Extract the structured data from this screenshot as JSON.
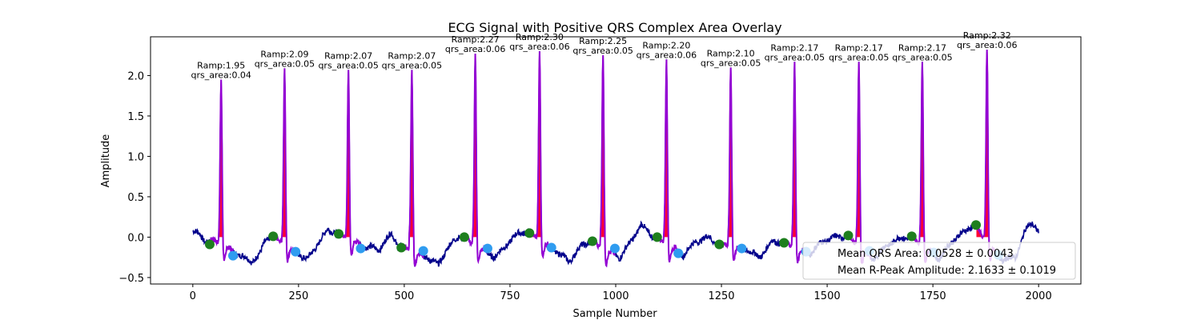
{
  "chart_data": {
    "type": "line",
    "title": "ECG Signal with Positive QRS Complex Area Overlay",
    "xlabel": "Sample Number",
    "ylabel": "Amplitude",
    "xlim": [
      -100,
      2100
    ],
    "ylim": [
      -0.58,
      2.48
    ],
    "xticks": [
      0,
      250,
      500,
      750,
      1000,
      1250,
      1500,
      1750,
      2000
    ],
    "yticks": [
      -0.5,
      0.0,
      0.5,
      1.0,
      1.5,
      2.0
    ],
    "xtick_labels": [
      "0",
      "250",
      "500",
      "750",
      "1000",
      "1250",
      "1500",
      "1750",
      "2000"
    ],
    "ytick_labels": [
      "−0.5",
      "0.0",
      "0.5",
      "1.0",
      "1.5",
      "2.0"
    ],
    "grid": false,
    "legend_position": "lower-right",
    "colors": {
      "signal": "#00008b",
      "qrs_line": "#9400d3",
      "qrs_fill": "#ff0033",
      "q_point": "#1e7f1e",
      "s_point": "#2f9cf0"
    },
    "r_peaks": [
      {
        "x": 67,
        "amp": 1.95,
        "ramp": "Ramp:1.95",
        "qrs": "qrs_area:0.04"
      },
      {
        "x": 217,
        "amp": 2.09,
        "ramp": "Ramp:2.09",
        "qrs": "qrs_area:0.05"
      },
      {
        "x": 368,
        "amp": 2.07,
        "ramp": "Ramp:2.07",
        "qrs": "qrs_area:0.05"
      },
      {
        "x": 518,
        "amp": 2.07,
        "ramp": "Ramp:2.07",
        "qrs": "qrs_area:0.05"
      },
      {
        "x": 668,
        "amp": 2.27,
        "ramp": "Ramp:2.27",
        "qrs": "qrs_area:0.06"
      },
      {
        "x": 820,
        "amp": 2.3,
        "ramp": "Ramp:2.30",
        "qrs": "qrs_area:0.06"
      },
      {
        "x": 970,
        "amp": 2.25,
        "ramp": "Ramp:2.25",
        "qrs": "qrs_area:0.05"
      },
      {
        "x": 1120,
        "amp": 2.2,
        "ramp": "Ramp:2.20",
        "qrs": "qrs_area:0.06"
      },
      {
        "x": 1272,
        "amp": 2.1,
        "ramp": "Ramp:2.10",
        "qrs": "qrs_area:0.05"
      },
      {
        "x": 1423,
        "amp": 2.17,
        "ramp": "Ramp:2.17",
        "qrs": "qrs_area:0.05"
      },
      {
        "x": 1575,
        "amp": 2.17,
        "ramp": "Ramp:2.17",
        "qrs": "qrs_area:0.05"
      },
      {
        "x": 1725,
        "amp": 2.17,
        "ramp": "Ramp:2.17",
        "qrs": "qrs_area:0.05"
      },
      {
        "x": 1878,
        "amp": 2.32,
        "ramp": "Ramp:2.32",
        "qrs": "qrs_area:0.06"
      }
    ],
    "q_points": [
      {
        "x": 40,
        "y": -0.09
      },
      {
        "x": 190,
        "y": 0.01
      },
      {
        "x": 345,
        "y": 0.04
      },
      {
        "x": 493,
        "y": -0.13
      },
      {
        "x": 642,
        "y": 0.0
      },
      {
        "x": 796,
        "y": 0.05
      },
      {
        "x": 945,
        "y": -0.05
      },
      {
        "x": 1098,
        "y": 0.0
      },
      {
        "x": 1245,
        "y": -0.09
      },
      {
        "x": 1398,
        "y": -0.07
      },
      {
        "x": 1550,
        "y": 0.02
      },
      {
        "x": 1700,
        "y": 0.01
      },
      {
        "x": 1852,
        "y": 0.15
      }
    ],
    "s_points": [
      {
        "x": 95,
        "y": -0.23
      },
      {
        "x": 243,
        "y": -0.18
      },
      {
        "x": 397,
        "y": -0.14
      },
      {
        "x": 545,
        "y": -0.17
      },
      {
        "x": 697,
        "y": -0.14
      },
      {
        "x": 848,
        "y": -0.13
      },
      {
        "x": 998,
        "y": -0.14
      },
      {
        "x": 1148,
        "y": -0.2
      },
      {
        "x": 1298,
        "y": -0.14
      },
      {
        "x": 1450,
        "y": -0.18
      },
      {
        "x": 1600,
        "y": -0.17
      },
      {
        "x": 1752,
        "y": -0.19
      },
      {
        "x": 1905,
        "y": -0.22
      }
    ],
    "baseline_segments": [
      [
        0,
        0.07
      ],
      [
        15,
        0.04
      ],
      [
        30,
        -0.05
      ],
      [
        55,
        -0.05
      ],
      [
        120,
        -0.25
      ],
      [
        140,
        -0.3
      ],
      [
        160,
        -0.2
      ],
      [
        170,
        -0.05
      ],
      [
        185,
        0.02
      ],
      [
        270,
        -0.28
      ],
      [
        300,
        -0.05
      ],
      [
        320,
        0.1
      ],
      [
        340,
        0.05
      ],
      [
        410,
        -0.12
      ],
      [
        440,
        -0.15
      ],
      [
        470,
        0.05
      ],
      [
        485,
        -0.1
      ],
      [
        555,
        -0.25
      ],
      [
        580,
        -0.35
      ],
      [
        600,
        -0.15
      ],
      [
        630,
        0.02
      ],
      [
        715,
        -0.25
      ],
      [
        740,
        -0.1
      ],
      [
        770,
        0.05
      ],
      [
        790,
        0.07
      ],
      [
        860,
        -0.18
      ],
      [
        890,
        -0.3
      ],
      [
        920,
        -0.1
      ],
      [
        940,
        -0.06
      ],
      [
        1010,
        -0.25
      ],
      [
        1030,
        -0.1
      ],
      [
        1060,
        0.15
      ],
      [
        1090,
        0.0
      ],
      [
        1160,
        -0.22
      ],
      [
        1190,
        -0.05
      ],
      [
        1220,
        0.0
      ],
      [
        1240,
        -0.08
      ],
      [
        1310,
        -0.15
      ],
      [
        1340,
        -0.25
      ],
      [
        1370,
        -0.05
      ],
      [
        1390,
        -0.06
      ],
      [
        1460,
        -0.2
      ],
      [
        1490,
        -0.05
      ],
      [
        1520,
        0.0
      ],
      [
        1545,
        0.02
      ],
      [
        1610,
        -0.28
      ],
      [
        1640,
        -0.1
      ],
      [
        1670,
        -0.02
      ],
      [
        1695,
        0.01
      ],
      [
        1765,
        -0.27
      ],
      [
        1795,
        -0.05
      ],
      [
        1820,
        0.05
      ],
      [
        1845,
        0.15
      ],
      [
        1915,
        -0.28
      ],
      [
        1945,
        -0.25
      ],
      [
        1970,
        0.1
      ],
      [
        1985,
        0.18
      ],
      [
        2000,
        0.07
      ]
    ],
    "legend": [
      {
        "label": "Mean QRS Area: 0.0528 ± 0.0043"
      },
      {
        "label": "Mean R-Peak Amplitude: 2.1633 ± 0.1019"
      }
    ]
  }
}
